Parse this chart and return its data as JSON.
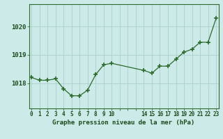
{
  "x": [
    0,
    1,
    2,
    3,
    4,
    5,
    6,
    7,
    8,
    9,
    10,
    14,
    15,
    16,
    17,
    18,
    19,
    20,
    21,
    22,
    23
  ],
  "y": [
    1018.2,
    1018.1,
    1018.1,
    1018.15,
    1017.8,
    1017.55,
    1017.55,
    1017.75,
    1018.3,
    1018.65,
    1018.7,
    1018.45,
    1018.35,
    1018.6,
    1018.6,
    1018.85,
    1019.1,
    1019.2,
    1019.45,
    1019.45,
    1020.3
  ],
  "xtick_positions": [
    0,
    1,
    2,
    3,
    4,
    5,
    6,
    7,
    8,
    9,
    10,
    11,
    12,
    13,
    14,
    15,
    16,
    17,
    18,
    19,
    20,
    21,
    22,
    23
  ],
  "xtick_labels": [
    "0",
    "1",
    "2",
    "3",
    "4",
    "5",
    "6",
    "7",
    "8",
    "9",
    "10",
    "",
    "",
    "",
    "14",
    "15",
    "16",
    "17",
    "18",
    "19",
    "20",
    "21",
    "22",
    "23"
  ],
  "yticks": [
    1018,
    1019,
    1020
  ],
  "ylim": [
    1017.1,
    1020.8
  ],
  "xlim": [
    -0.3,
    23.3
  ],
  "xlabel": "Graphe pression niveau de la mer (hPa)",
  "line_color": "#2d6a2d",
  "marker_color": "#2d6a2d",
  "bg_color": "#cceae8",
  "grid_color": "#aacfcd",
  "text_color": "#1a4a1a",
  "border_color": "#2d6a2d",
  "marker": "+"
}
